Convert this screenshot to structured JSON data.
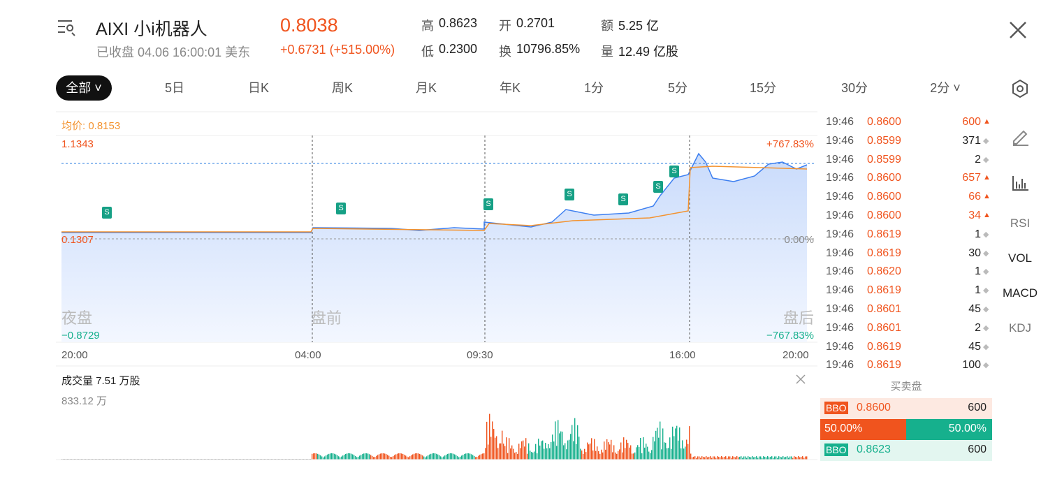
{
  "header": {
    "symbol": "AIXI 小i机器人",
    "price": "0.8038",
    "status": "已收盘 04.06 16:00:01 美东",
    "change": "+0.6731 (+515.00%)",
    "stats": [
      {
        "label": "高",
        "value": "0.8623"
      },
      {
        "label": "开",
        "value": "0.2701"
      },
      {
        "label": "额",
        "value": "5.25 亿"
      },
      {
        "label": "低",
        "value": "0.2300"
      },
      {
        "label": "换",
        "value": "10796.85%"
      },
      {
        "label": "量",
        "value": "12.49 亿股"
      }
    ]
  },
  "tabs": [
    "全部",
    "5日",
    "日K",
    "周K",
    "月K",
    "年K",
    "1分",
    "5分",
    "15分",
    "30分",
    "2分"
  ],
  "chart": {
    "avg_label": "均价: 0.8153",
    "price_top": "1.1343",
    "pct_top": "+767.83%",
    "price_mid": "0.1307",
    "pct_mid": "0.00%",
    "price_bottom": "−0.8729",
    "pct_bottom": "−767.83%",
    "sessions": [
      "夜盘",
      "盘前",
      "盘后"
    ],
    "times": [
      "20:00",
      "04:00",
      "09:30",
      "16:00",
      "20:00"
    ],
    "marker": "S"
  },
  "volume": {
    "title": "成交量 7.51 万股",
    "max": "833.12 万"
  },
  "trades": [
    {
      "time": "19:46",
      "price": "0.8600",
      "qty": "600",
      "dir": "up"
    },
    {
      "time": "19:46",
      "price": "0.8599",
      "qty": "371",
      "dir": "flat"
    },
    {
      "time": "19:46",
      "price": "0.8599",
      "qty": "2",
      "dir": "flat"
    },
    {
      "time": "19:46",
      "price": "0.8600",
      "qty": "657",
      "dir": "up"
    },
    {
      "time": "19:46",
      "price": "0.8600",
      "qty": "66",
      "dir": "up"
    },
    {
      "time": "19:46",
      "price": "0.8600",
      "qty": "34",
      "dir": "up"
    },
    {
      "time": "19:46",
      "price": "0.8619",
      "qty": "1",
      "dir": "flat"
    },
    {
      "time": "19:46",
      "price": "0.8619",
      "qty": "30",
      "dir": "flat"
    },
    {
      "time": "19:46",
      "price": "0.8620",
      "qty": "1",
      "dir": "flat"
    },
    {
      "time": "19:46",
      "price": "0.8619",
      "qty": "1",
      "dir": "flat"
    },
    {
      "time": "19:46",
      "price": "0.8601",
      "qty": "45",
      "dir": "flat"
    },
    {
      "time": "19:46",
      "price": "0.8601",
      "qty": "2",
      "dir": "flat"
    },
    {
      "time": "19:46",
      "price": "0.8619",
      "qty": "45",
      "dir": "flat"
    },
    {
      "time": "19:46",
      "price": "0.8619",
      "qty": "100",
      "dir": "flat"
    }
  ],
  "indicators": [
    "RSI",
    "VOL",
    "MACD",
    "KDJ"
  ],
  "order_book": {
    "title": "买卖盘",
    "bid": {
      "tag": "BBO",
      "price": "0.8600",
      "size": "600"
    },
    "ratio": [
      "50.00%",
      "50.00%"
    ],
    "ask": {
      "tag": "BBO",
      "price": "0.8623",
      "size": "600"
    }
  }
}
